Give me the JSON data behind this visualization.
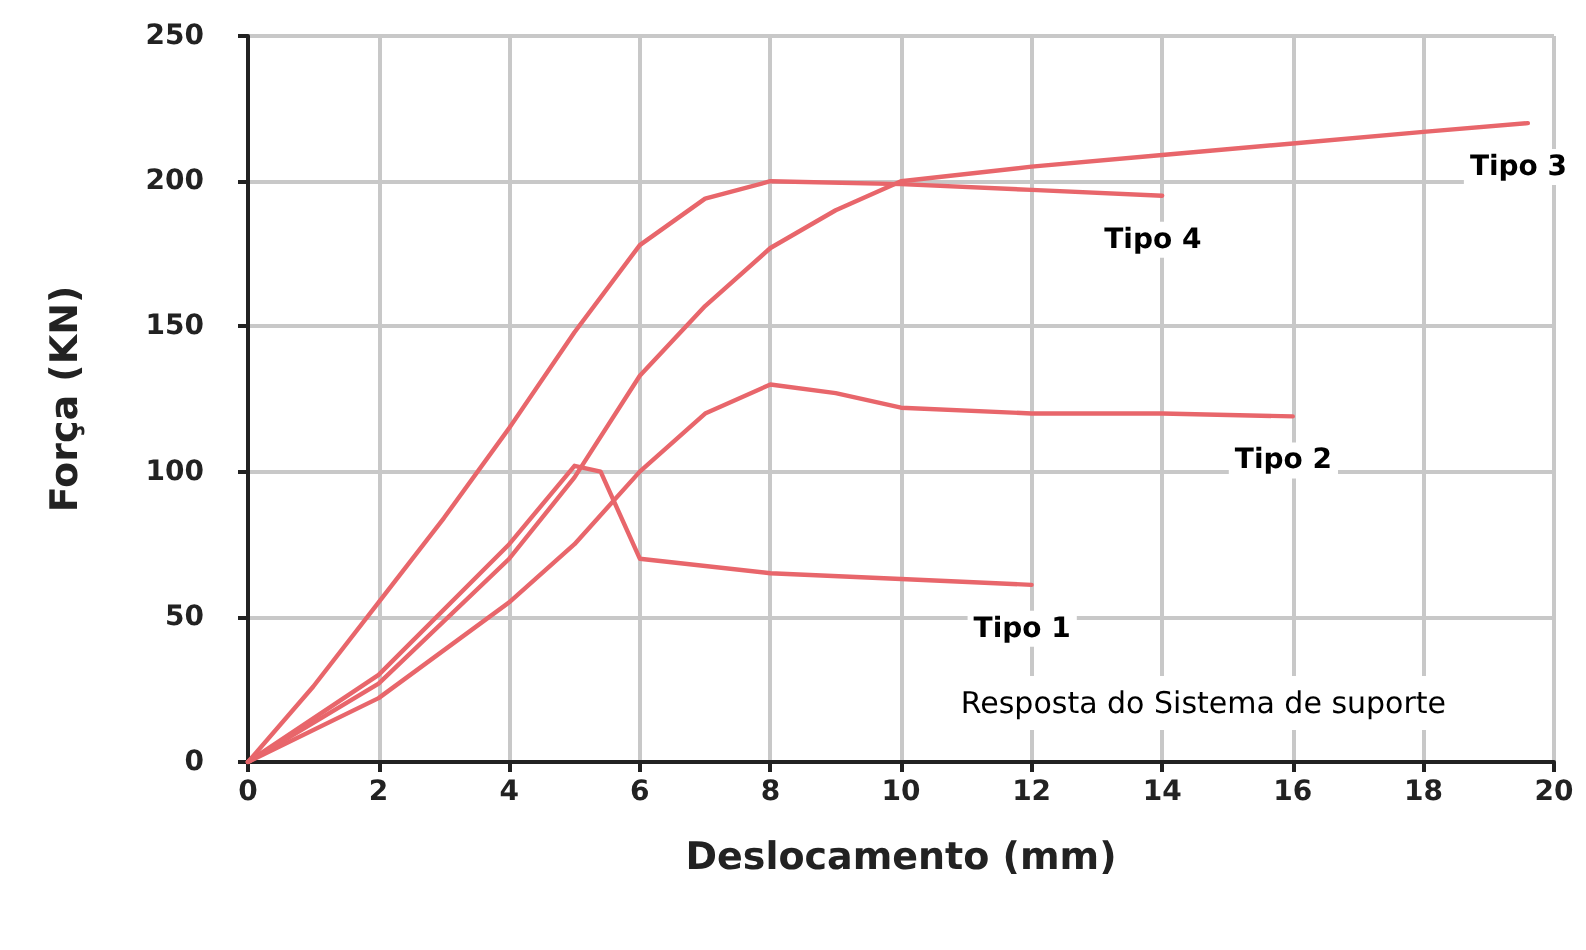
{
  "chart_data": {
    "type": "line",
    "xlabel": "Deslocamento (mm)",
    "ylabel": "Força (KN)",
    "xlim": [
      0,
      20
    ],
    "xticks": [
      0,
      2,
      4,
      6,
      8,
      10,
      12,
      14,
      16,
      18,
      20
    ],
    "ylim": [
      0,
      250
    ],
    "yticks": [
      0,
      50,
      100,
      150,
      200,
      250
    ],
    "grid": true,
    "legend": false,
    "marker": "none",
    "line_style": "solid",
    "annotations": [
      "Resposta do Sistema de suporte"
    ],
    "series": [
      {
        "name": "Tipo 1",
        "color": "#e8666b",
        "x": [
          0,
          2,
          4,
          5,
          5.4,
          6,
          8,
          10,
          12
        ],
        "values": [
          0,
          30,
          75,
          102,
          100,
          70,
          65,
          63,
          61
        ]
      },
      {
        "name": "Tipo 2",
        "color": "#e8666b",
        "x": [
          0,
          2,
          4,
          5,
          6,
          7,
          8,
          9,
          10,
          12,
          14,
          16
        ],
        "values": [
          0,
          22,
          55,
          75,
          100,
          120,
          130,
          127,
          122,
          120,
          120,
          119
        ]
      },
      {
        "name": "Tipo 3",
        "color": "#e8666b",
        "x": [
          0,
          2,
          4,
          5,
          6,
          7,
          8,
          9,
          10,
          12,
          14,
          16,
          18,
          19.6
        ],
        "values": [
          0,
          27,
          70,
          98,
          133,
          157,
          177,
          190,
          200,
          205,
          209,
          213,
          217,
          220
        ]
      },
      {
        "name": "Tipo 4",
        "color": "#e8666b",
        "x": [
          0,
          1,
          2,
          3,
          4,
          5,
          6,
          7,
          8,
          10,
          12,
          14
        ],
        "values": [
          0,
          26,
          55,
          84,
          115,
          148,
          178,
          194,
          200,
          199,
          197,
          195
        ]
      }
    ]
  }
}
